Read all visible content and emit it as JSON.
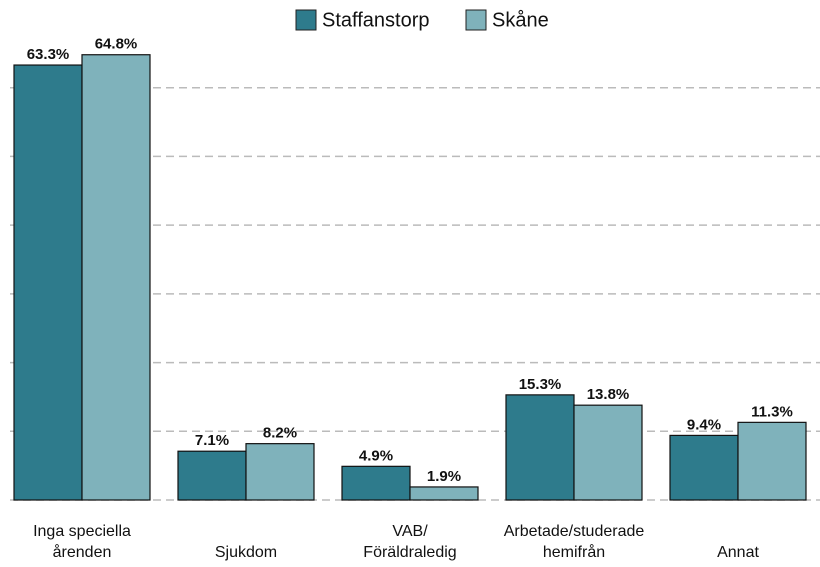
{
  "chart_data": {
    "type": "bar",
    "categories": [
      "Inga speciella\nårenden",
      "Sjukdom",
      "VAB/\nFöräldraledig",
      "Arbetade/studerade\nhemifrån",
      "Annat"
    ],
    "series": [
      {
        "name": "Staffanstorp",
        "color": "#2e7b8c",
        "values": [
          63.3,
          7.1,
          4.9,
          15.3,
          9.4
        ],
        "value_labels": [
          "63.3%",
          "7.1%",
          "4.9%",
          "15.3%",
          "9.4%"
        ]
      },
      {
        "name": "Skåne",
        "color": "#7fb2bb",
        "values": [
          64.8,
          8.2,
          1.9,
          13.8,
          11.3
        ],
        "value_labels": [
          "64.8%",
          "8.2%",
          "1.9%",
          "13.8%",
          "11.3%"
        ]
      }
    ],
    "ylim": [
      0,
      70
    ],
    "yticks": [
      0,
      10,
      20,
      30,
      40,
      50,
      60
    ],
    "grid": true,
    "legend": "top"
  }
}
